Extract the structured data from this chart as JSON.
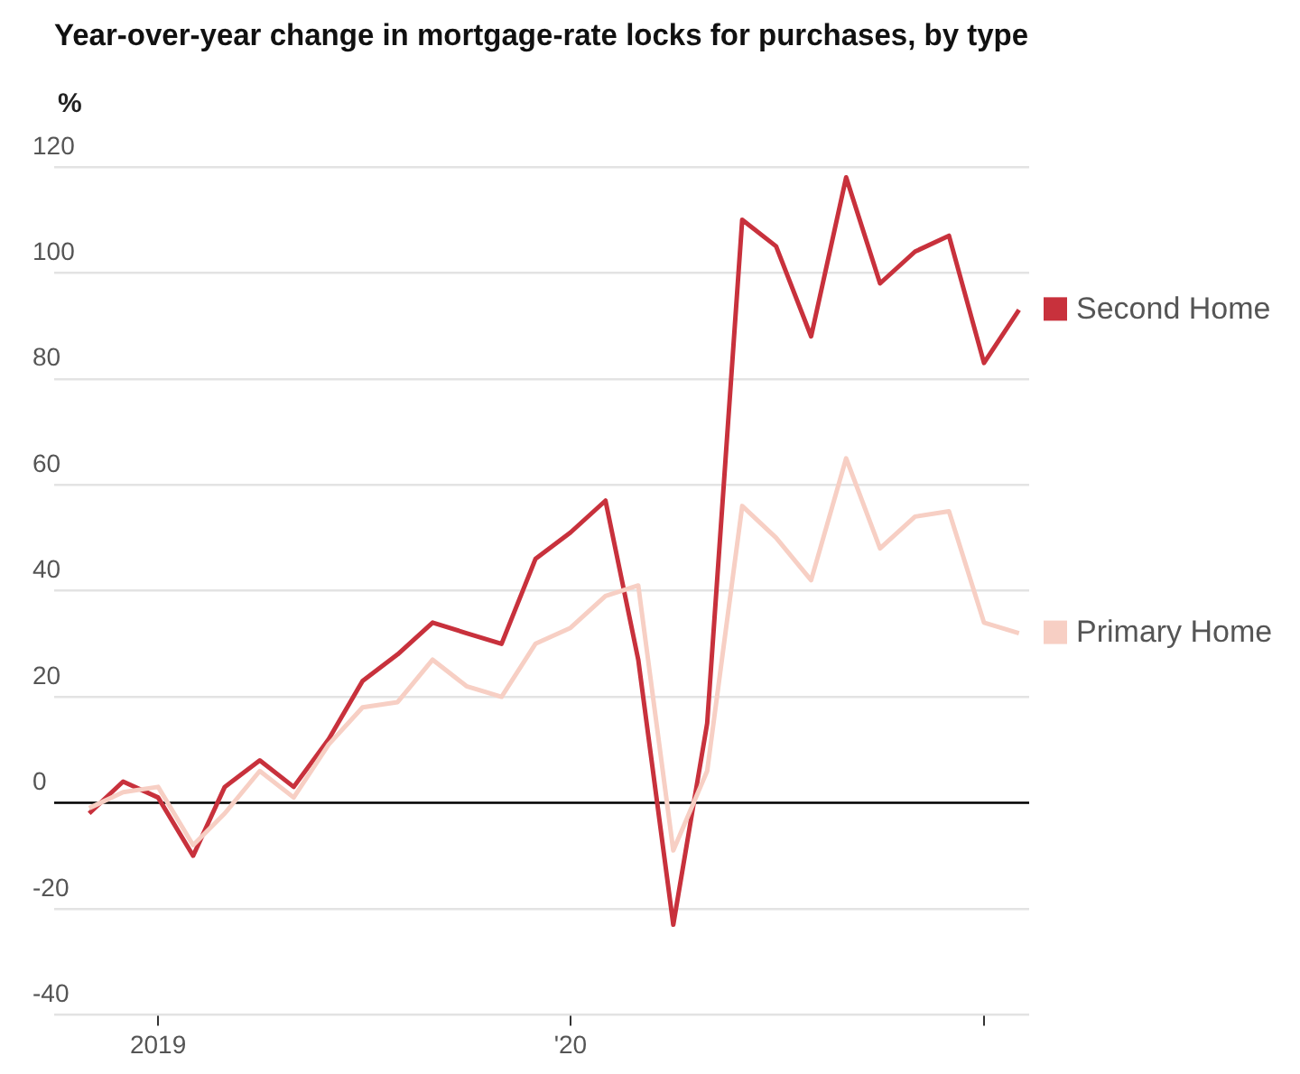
{
  "chart_data": {
    "type": "line",
    "title": "Year-over-year change in mortgage-rate locks for purchases, by type",
    "ylabel": "%",
    "x": [
      "2018-11",
      "2018-12",
      "2019-01",
      "2019-02",
      "2019-03",
      "2019-04",
      "2019-05",
      "2019-06",
      "2019-07",
      "2019-08",
      "2019-09",
      "2019-10",
      "2019-11",
      "2019-12",
      "2020-01",
      "2020-02",
      "2020-03",
      "2020-04",
      "2020-05",
      "2020-06",
      "2020-07",
      "2020-08",
      "2020-09",
      "2020-10",
      "2020-11",
      "2020-12",
      "2021-01",
      "2021-02"
    ],
    "series": [
      {
        "name": "Second Home",
        "color": "#c8313c",
        "values": [
          -2,
          4,
          1,
          -10,
          3,
          8,
          3,
          12,
          23,
          28,
          34,
          32,
          30,
          46,
          51,
          57,
          27,
          -23,
          15,
          110,
          105,
          88,
          118,
          98,
          104,
          107,
          83,
          93
        ]
      },
      {
        "name": "Primary Home",
        "color": "#f7cfc4",
        "values": [
          -1,
          2,
          3,
          -8,
          -2,
          6,
          1,
          11,
          18,
          19,
          27,
          22,
          20,
          30,
          33,
          39,
          41,
          -9,
          6,
          56,
          50,
          42,
          65,
          48,
          54,
          55,
          34,
          32
        ]
      }
    ],
    "xlim": [
      "2018-10-01",
      "2021-02-10"
    ],
    "xticks": [
      {
        "value": "2019-01",
        "label": "2019"
      },
      {
        "value": "2020-01",
        "label": "'20"
      },
      {
        "value": "2021-01",
        "label": null
      }
    ],
    "ylim": [
      -40,
      120
    ],
    "yticks": [
      -40,
      -20,
      0,
      20,
      40,
      60,
      80,
      100,
      120
    ],
    "grid": "y",
    "ref_lines": [
      {
        "axis": "y",
        "value": 0,
        "color": "#000000"
      }
    ],
    "legend": "right",
    "marker": "none",
    "line_style": "solid"
  }
}
